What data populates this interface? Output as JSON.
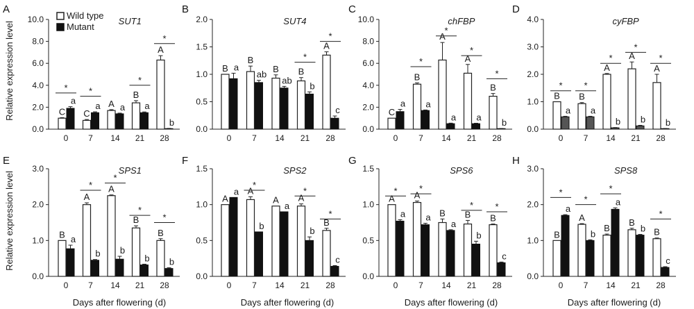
{
  "figure": {
    "ylabel": "Relative expression level",
    "xlabel": "Days after flowering (d)",
    "legend": {
      "wild": "Wild type",
      "mutant": "Mutant",
      "placement": "top-left of panel A"
    },
    "colors": {
      "wild_fill": "#ffffff",
      "mutant_fill": "#111111",
      "mutant_fill_gray": "#555555",
      "axis": "#222222"
    }
  },
  "chart_data": [
    {
      "type": "bar",
      "panel": "A",
      "gene": "SUT1",
      "categories": [
        "0",
        "7",
        "14",
        "21",
        "28"
      ],
      "ylim": [
        0,
        10
      ],
      "yticks": [
        "0.0",
        "2.0",
        "4.0",
        "6.0",
        "8.0",
        "10.0"
      ],
      "mutant_color": "#111111",
      "series": [
        {
          "name": "Wild type",
          "values": [
            1.0,
            0.8,
            1.7,
            2.4,
            6.3
          ],
          "errors": [
            0.05,
            0.08,
            0.08,
            0.2,
            0.4
          ],
          "letters": [
            "C",
            "C",
            "A",
            "B",
            "A"
          ]
        },
        {
          "name": "Mutant",
          "values": [
            1.9,
            1.5,
            1.4,
            1.5,
            0.05
          ],
          "errors": [
            0.15,
            0.08,
            0.06,
            0.07,
            0.02
          ],
          "letters": [
            "a",
            "a",
            "a",
            "a",
            "b"
          ]
        }
      ],
      "sig": [
        {
          "cat": 0,
          "y": 3.3,
          "label": "*"
        },
        {
          "cat": 1,
          "y": 3.0,
          "label": "*"
        },
        {
          "cat": 3,
          "y": 4.0,
          "label": "*"
        },
        {
          "cat": 4,
          "y": 7.8,
          "label": "*"
        }
      ]
    },
    {
      "type": "bar",
      "panel": "B",
      "gene": "SUT4",
      "categories": [
        "0",
        "7",
        "14",
        "21",
        "28"
      ],
      "ylim": [
        0,
        2
      ],
      "yticks": [
        "0.0",
        "0.5",
        "1.0",
        "1.5",
        "2.0"
      ],
      "mutant_color": "#111111",
      "series": [
        {
          "name": "Wild type",
          "values": [
            1.0,
            1.05,
            0.93,
            0.88,
            1.35
          ],
          "errors": [
            0.0,
            0.1,
            0.06,
            0.06,
            0.06
          ],
          "letters": [
            "B",
            "B",
            "B",
            "B",
            "A"
          ]
        },
        {
          "name": "Mutant",
          "values": [
            0.92,
            0.85,
            0.75,
            0.64,
            0.2
          ],
          "errors": [
            0.1,
            0.04,
            0.03,
            0.04,
            0.04
          ],
          "letters": [
            "a",
            "ab",
            "ab",
            "b",
            "c"
          ]
        }
      ],
      "sig": [
        {
          "cat": 3,
          "y": 1.22,
          "label": "*"
        },
        {
          "cat": 4,
          "y": 1.6,
          "label": "*"
        }
      ]
    },
    {
      "type": "bar",
      "panel": "C",
      "gene": "chFBP",
      "categories": [
        "0",
        "7",
        "14",
        "21",
        "28"
      ],
      "ylim": [
        0,
        10
      ],
      "yticks": [
        "0.0",
        "2.0",
        "4.0",
        "6.0",
        "8.0",
        "10.0"
      ],
      "mutant_color": "#111111",
      "series": [
        {
          "name": "Wild type",
          "values": [
            1.0,
            4.1,
            6.3,
            5.1,
            3.0
          ],
          "errors": [
            0.0,
            0.12,
            1.6,
            0.8,
            0.25
          ],
          "letters": [
            "C",
            "B",
            "A",
            "A",
            "B"
          ]
        },
        {
          "name": "Mutant",
          "values": [
            1.6,
            1.7,
            0.5,
            0.5,
            0.05
          ],
          "errors": [
            0.2,
            0.05,
            0.05,
            0.04,
            0.01
          ],
          "letters": [
            "a",
            "a",
            "a",
            "a",
            "b"
          ]
        }
      ],
      "sig": [
        {
          "cat": 1,
          "y": 5.7,
          "label": "*"
        },
        {
          "cat": 2,
          "y": 8.5,
          "label": "*"
        },
        {
          "cat": 3,
          "y": 6.7,
          "label": "*"
        },
        {
          "cat": 4,
          "y": 4.6,
          "label": "*"
        }
      ]
    },
    {
      "type": "bar",
      "panel": "D",
      "gene": "cyFBP",
      "categories": [
        "0",
        "7",
        "14",
        "21",
        "28"
      ],
      "ylim": [
        0,
        4
      ],
      "yticks": [
        "0.0",
        "1.0",
        "2.0",
        "3.0",
        "4.0"
      ],
      "mutant_color": "#555555",
      "series": [
        {
          "name": "Wild type",
          "values": [
            1.0,
            0.93,
            2.0,
            2.2,
            1.7
          ],
          "errors": [
            0.0,
            0.04,
            0.03,
            0.25,
            0.3
          ],
          "letters": [
            "B",
            "B",
            "A",
            "A",
            "A"
          ]
        },
        {
          "name": "Mutant",
          "values": [
            0.45,
            0.45,
            0.05,
            0.12,
            0.02
          ],
          "errors": [
            0.02,
            0.02,
            0.01,
            0.02,
            0.005
          ],
          "letters": [
            "a",
            "a",
            "b",
            "b",
            "b"
          ]
        }
      ],
      "sig": [
        {
          "cat": 0,
          "y": 1.4,
          "label": "*"
        },
        {
          "cat": 1,
          "y": 1.4,
          "label": "*"
        },
        {
          "cat": 2,
          "y": 2.4,
          "label": "*"
        },
        {
          "cat": 3,
          "y": 2.8,
          "label": "*"
        },
        {
          "cat": 4,
          "y": 2.4,
          "label": "*"
        }
      ]
    },
    {
      "type": "bar",
      "panel": "E",
      "gene": "SPS1",
      "categories": [
        "0",
        "7",
        "14",
        "21",
        "28"
      ],
      "ylim": [
        0,
        3
      ],
      "yticks": [
        "0.0",
        "1.0",
        "2.0",
        "3.0"
      ],
      "mutant_color": "#111111",
      "series": [
        {
          "name": "Wild type",
          "values": [
            1.0,
            2.0,
            2.25,
            1.35,
            1.0
          ],
          "errors": [
            0.0,
            0.05,
            0.02,
            0.06,
            0.05
          ],
          "letters": [
            "B",
            "A",
            "A",
            "B",
            "B"
          ]
        },
        {
          "name": "Mutant",
          "values": [
            0.77,
            0.45,
            0.48,
            0.32,
            0.22
          ],
          "errors": [
            0.1,
            0.02,
            0.08,
            0.02,
            0.02
          ],
          "letters": [
            "a",
            "b",
            "b",
            "b",
            "b"
          ]
        }
      ],
      "sig": [
        {
          "cat": 1,
          "y": 2.4,
          "label": "*"
        },
        {
          "cat": 2,
          "y": 2.6,
          "label": "*"
        },
        {
          "cat": 3,
          "y": 1.7,
          "label": "*"
        },
        {
          "cat": 4,
          "y": 1.5,
          "label": "*"
        }
      ]
    },
    {
      "type": "bar",
      "panel": "F",
      "gene": "SPS2",
      "categories": [
        "0",
        "7",
        "14",
        "21",
        "28"
      ],
      "ylim": [
        0,
        1.5
      ],
      "yticks": [
        "0.0",
        "0.5",
        "1.0",
        "1.5"
      ],
      "mutant_color": "#111111",
      "series": [
        {
          "name": "Wild type",
          "values": [
            1.0,
            1.07,
            0.98,
            0.98,
            0.64
          ],
          "errors": [
            0.0,
            0.04,
            0.0,
            0.03,
            0.03
          ],
          "letters": [
            "A",
            "A",
            "A",
            "A",
            "B"
          ]
        },
        {
          "name": "Mutant",
          "values": [
            1.1,
            0.62,
            0.9,
            0.5,
            0.14
          ],
          "errors": [
            0.0,
            0.0,
            0.0,
            0.05,
            0.01
          ],
          "letters": [
            "a",
            "b",
            "a",
            "b",
            "c"
          ]
        }
      ],
      "sig": [
        {
          "cat": 1,
          "y": 1.2,
          "label": "*"
        },
        {
          "cat": 3,
          "y": 1.12,
          "label": "*"
        },
        {
          "cat": 4,
          "y": 0.8,
          "label": "*"
        }
      ]
    },
    {
      "type": "bar",
      "panel": "G",
      "gene": "SPS6",
      "categories": [
        "0",
        "7",
        "14",
        "21",
        "28"
      ],
      "ylim": [
        0,
        1.5
      ],
      "yticks": [
        "0.0",
        "0.5",
        "1.0",
        "1.5"
      ],
      "mutant_color": "#111111",
      "series": [
        {
          "name": "Wild type",
          "values": [
            1.0,
            1.03,
            0.75,
            0.73,
            0.72
          ],
          "errors": [
            0.0,
            0.02,
            0.05,
            0.05,
            0.01
          ],
          "letters": [
            "A",
            "A",
            "B",
            "B",
            "B"
          ]
        },
        {
          "name": "Mutant",
          "values": [
            0.77,
            0.72,
            0.64,
            0.45,
            0.19
          ],
          "errors": [
            0.02,
            0.02,
            0.01,
            0.04,
            0.01
          ],
          "letters": [
            "a",
            "a",
            "a",
            "b",
            "c"
          ]
        }
      ],
      "sig": [
        {
          "cat": 0,
          "y": 1.12,
          "label": "*"
        },
        {
          "cat": 1,
          "y": 1.15,
          "label": "*"
        },
        {
          "cat": 3,
          "y": 0.92,
          "label": "*"
        },
        {
          "cat": 4,
          "y": 0.9,
          "label": "*"
        }
      ]
    },
    {
      "type": "bar",
      "panel": "H",
      "gene": "SPS8",
      "categories": [
        "0",
        "7",
        "14",
        "21",
        "28"
      ],
      "ylim": [
        0,
        3
      ],
      "yticks": [
        "0.0",
        "1.0",
        "2.0",
        "3.0"
      ],
      "mutant_color": "#111111",
      "series": [
        {
          "name": "Wild type",
          "values": [
            1.0,
            1.45,
            1.15,
            1.3,
            1.05
          ],
          "errors": [
            0.0,
            0.02,
            0.03,
            0.04,
            0.02
          ],
          "letters": [
            "B",
            "A",
            "B",
            "B",
            "B"
          ]
        },
        {
          "name": "Mutant",
          "values": [
            1.7,
            1.0,
            1.87,
            1.15,
            0.25
          ],
          "errors": [
            0.02,
            0.02,
            0.04,
            0.02,
            0.02
          ],
          "letters": [
            "a",
            "b",
            "a",
            "b",
            "c"
          ]
        }
      ],
      "sig": [
        {
          "cat": 0,
          "y": 2.2,
          "label": "*"
        },
        {
          "cat": 1,
          "y": 2.0,
          "label": "*"
        },
        {
          "cat": 2,
          "y": 2.3,
          "label": "*"
        },
        {
          "cat": 4,
          "y": 1.6,
          "label": "*"
        }
      ]
    }
  ]
}
